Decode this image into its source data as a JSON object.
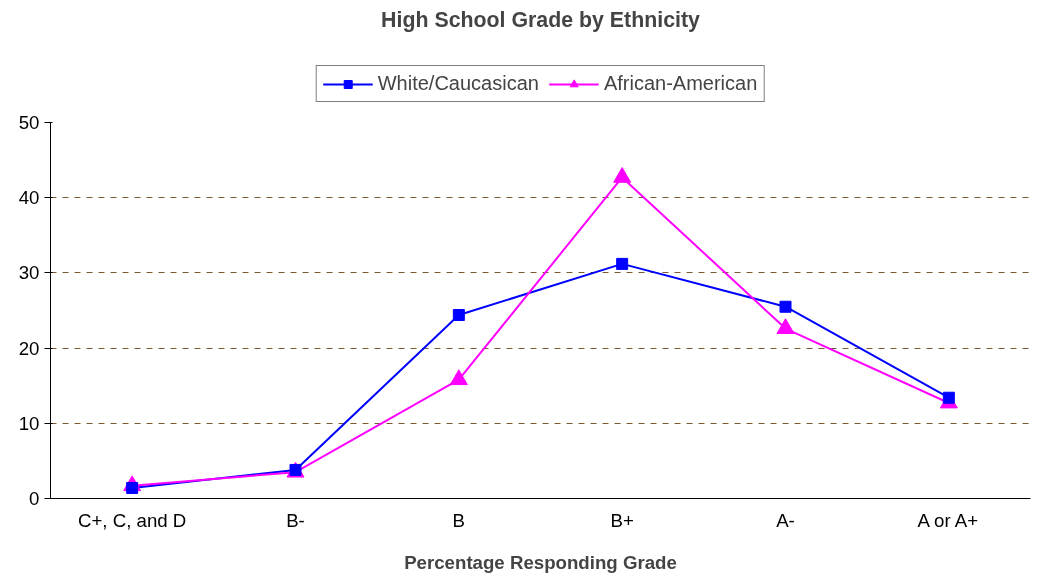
{
  "chart_data": {
    "type": "line",
    "title": "High School Grade by Ethnicity",
    "xlabel": "Percentage Responding Grade",
    "categories": [
      "C+, C, and D",
      "B-",
      "B",
      "B+",
      "A-",
      "A or A+"
    ],
    "series": [
      {
        "name": "White/Caucasican",
        "color": "#0000ff",
        "marker": "square",
        "values": [
          1.4,
          3.8,
          24.4,
          31.2,
          25.5,
          13.4
        ]
      },
      {
        "name": "African-American",
        "color": "#ff00ff",
        "marker": "triangle",
        "values": [
          1.7,
          3.5,
          15.8,
          42.7,
          22.6,
          12.7
        ]
      }
    ],
    "ylim": [
      0,
      50
    ],
    "yticks": [
      0,
      10,
      20,
      30,
      40,
      50
    ],
    "grid": "y",
    "legend": "top",
    "line_style": "solid"
  }
}
